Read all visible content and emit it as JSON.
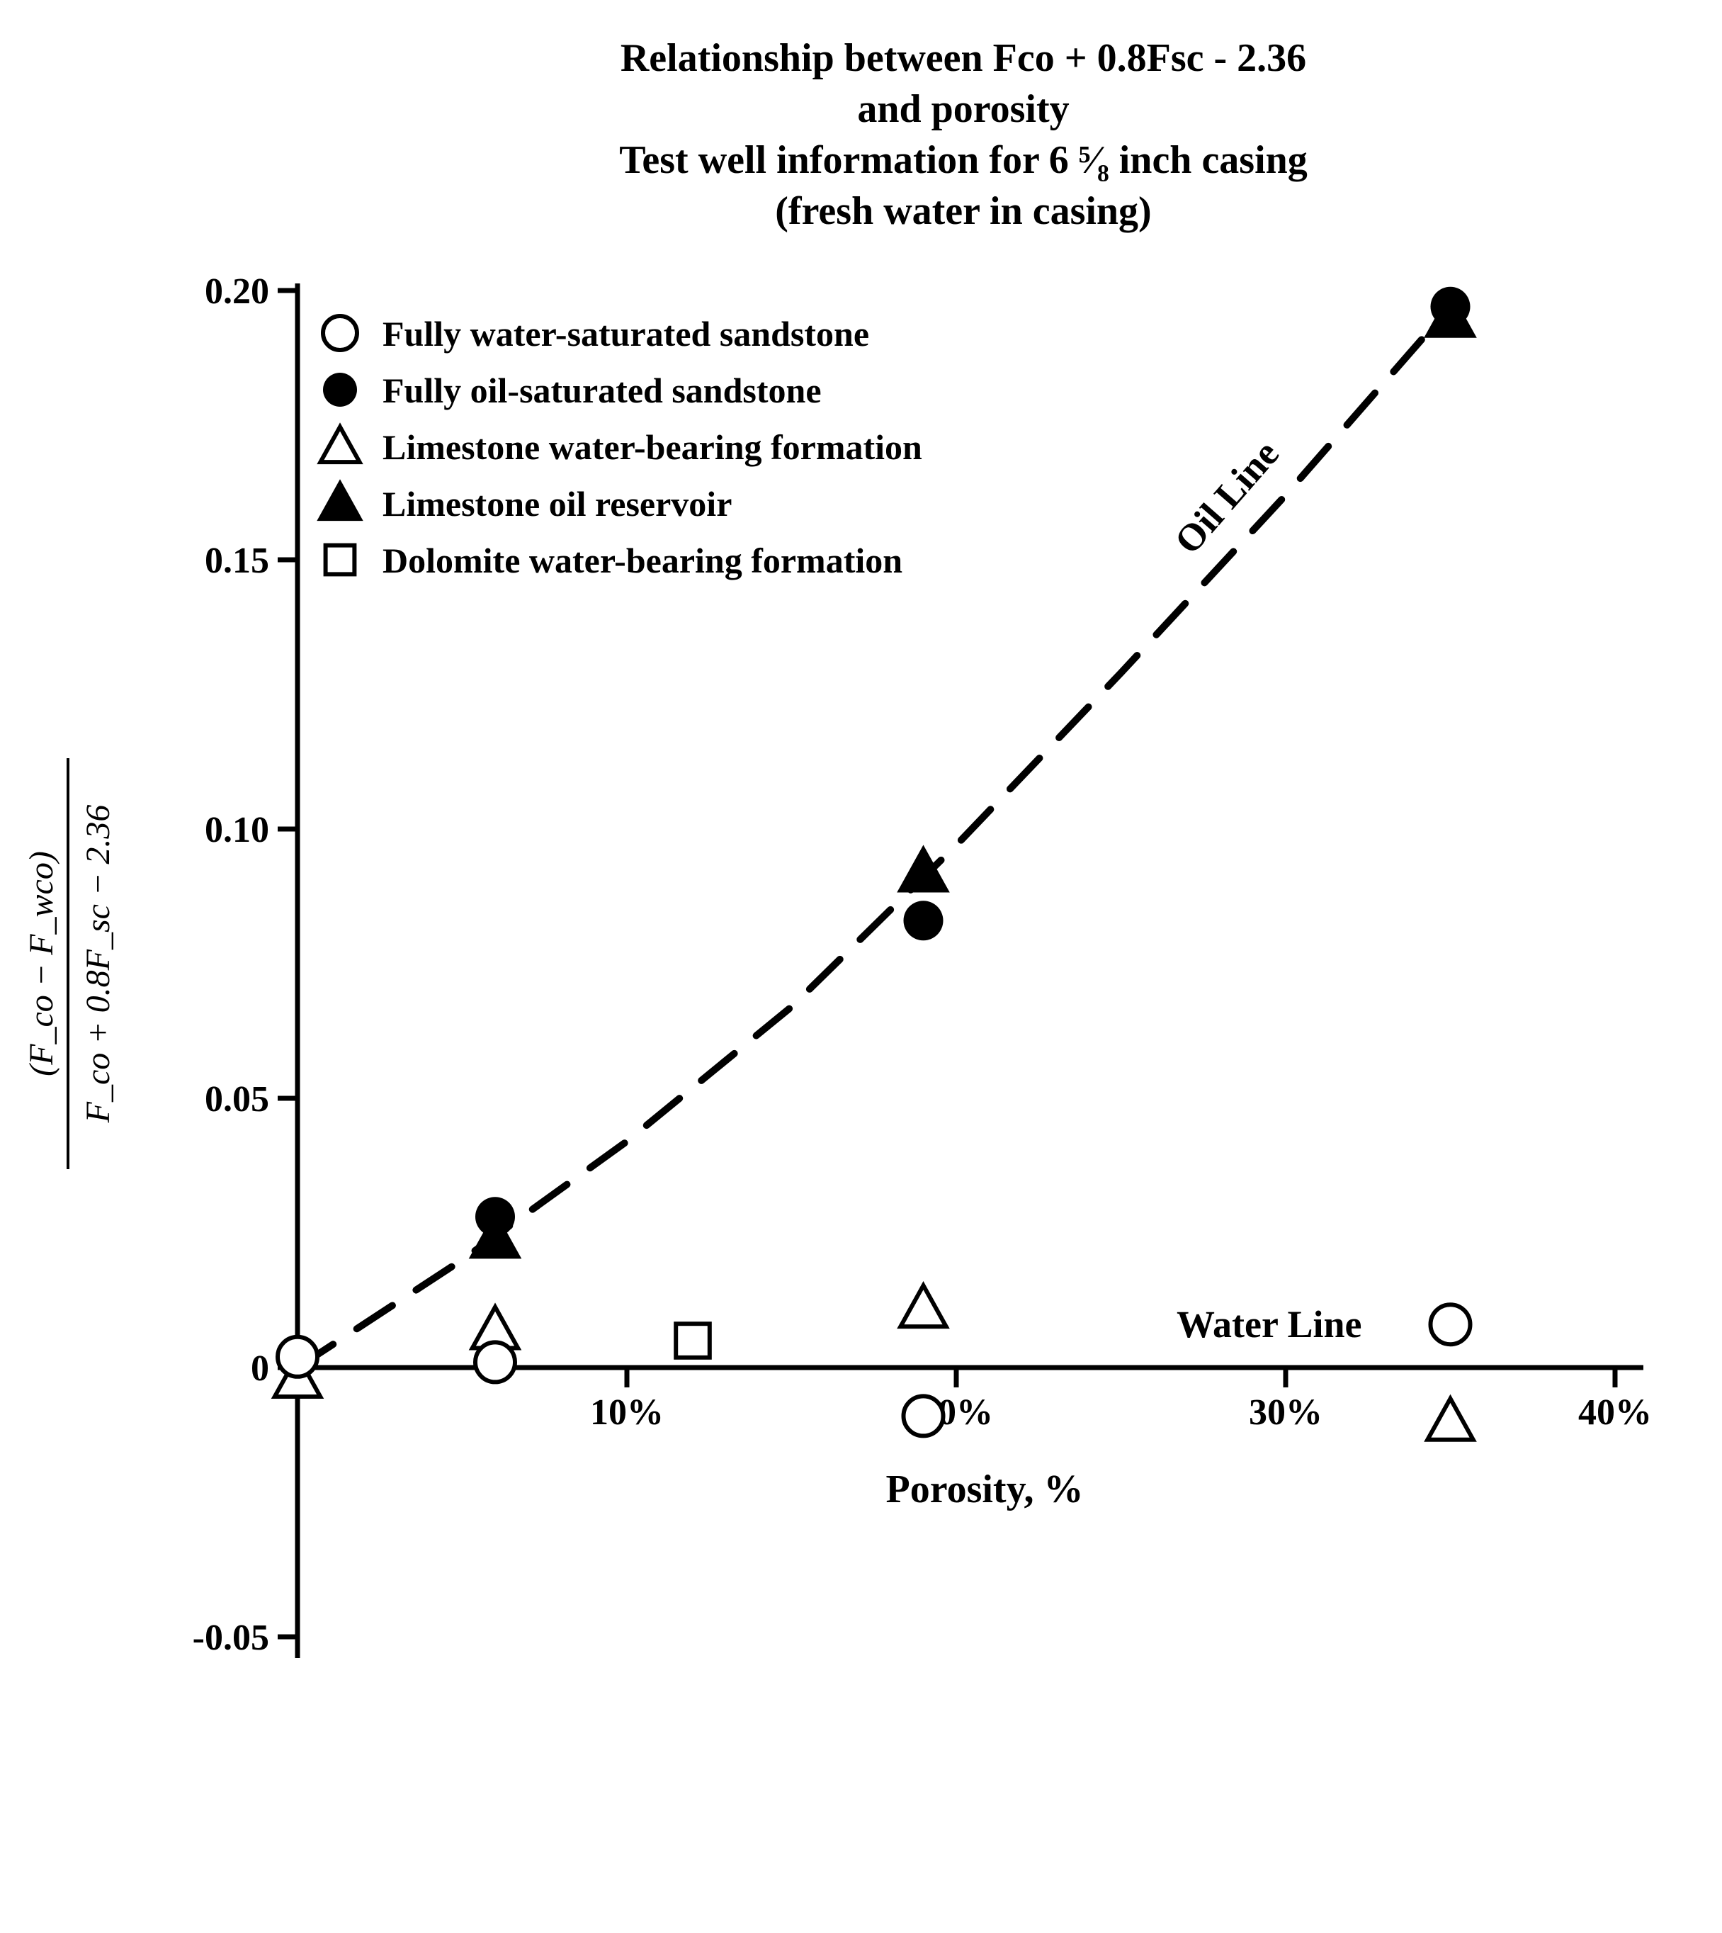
{
  "chart": {
    "type": "scatter-with-curve",
    "background_color": "#ffffff",
    "axis_color": "#000000",
    "text_color": "#000000",
    "stroke_width_axis": 7,
    "stroke_width_curve": 10,
    "title_lines": [
      "Relationship between Fco + 0.8Fsc - 2.36",
      "and porosity",
      "Test well information for 6 ⁵⁄₈ inch casing",
      "(fresh water in casing)"
    ],
    "title_fontsize": 56,
    "x": {
      "label": "Porosity, %",
      "label_fontsize": 56,
      "min": 0,
      "max": 40,
      "ticks": [
        10,
        20,
        30,
        40
      ],
      "tick_labels": [
        "10%",
        "20%",
        "30%",
        "40%"
      ],
      "tick_fontsize": 52
    },
    "y": {
      "label_numerator": "(F_co − F_wco)",
      "label_denominator": "F_co + 0.8F_sc − 2.36",
      "label_fontsize": 48,
      "min": -0.05,
      "max": 0.2,
      "ticks": [
        -0.05,
        0,
        0.05,
        0.1,
        0.15,
        0.2
      ],
      "tick_labels": [
        "-0.05",
        "0",
        "0.05",
        "0.10",
        "0.15",
        "0.20"
      ],
      "tick_fontsize": 52
    },
    "legend": {
      "fontsize": 50,
      "marker_radius": 24,
      "items": [
        {
          "id": "ss_water",
          "marker": "circle_open",
          "label": "Fully water-saturated sandstone"
        },
        {
          "id": "ss_oil",
          "marker": "circle_filled",
          "label": "Fully oil-saturated sandstone"
        },
        {
          "id": "ls_water",
          "marker": "triangle_open",
          "label": "Limestone water-bearing formation"
        },
        {
          "id": "ls_oil",
          "marker": "triangle_filled",
          "label": "Limestone oil reservoir"
        },
        {
          "id": "dol_water",
          "marker": "square_open",
          "label": "Dolomite water-bearing formation"
        }
      ]
    },
    "series": {
      "circle_open": [
        {
          "x": 0,
          "y": 0.002
        },
        {
          "x": 6,
          "y": 0.001
        },
        {
          "x": 19,
          "y": -0.009
        },
        {
          "x": 35,
          "y": 0.008
        }
      ],
      "circle_filled": [
        {
          "x": 6,
          "y": 0.028
        },
        {
          "x": 19,
          "y": 0.083
        },
        {
          "x": 35,
          "y": 0.197
        }
      ],
      "triangle_open": [
        {
          "x": 0,
          "y": -0.002
        },
        {
          "x": 6,
          "y": 0.007
        },
        {
          "x": 19,
          "y": 0.011
        },
        {
          "x": 35,
          "y": -0.01
        }
      ],
      "triangle_filled": [
        {
          "x": 6,
          "y": 0.024
        },
        {
          "x": 19,
          "y": 0.092
        },
        {
          "x": 35,
          "y": 0.195
        }
      ],
      "square_open": [
        {
          "x": 12,
          "y": 0.005
        }
      ]
    },
    "marker_radius_plot": 28,
    "marker_stroke_width": 6,
    "oil_line": {
      "label": "Oil Line",
      "label_fontsize": 54,
      "dash": "60 40",
      "points": [
        {
          "x": 0,
          "y": 0.0
        },
        {
          "x": 5,
          "y": 0.02
        },
        {
          "x": 10,
          "y": 0.042
        },
        {
          "x": 15,
          "y": 0.067
        },
        {
          "x": 20,
          "y": 0.097
        },
        {
          "x": 25,
          "y": 0.129
        },
        {
          "x": 30,
          "y": 0.162
        },
        {
          "x": 35,
          "y": 0.197
        }
      ]
    },
    "water_line_label": "Water Line",
    "water_line_label_fontsize": 54
  }
}
